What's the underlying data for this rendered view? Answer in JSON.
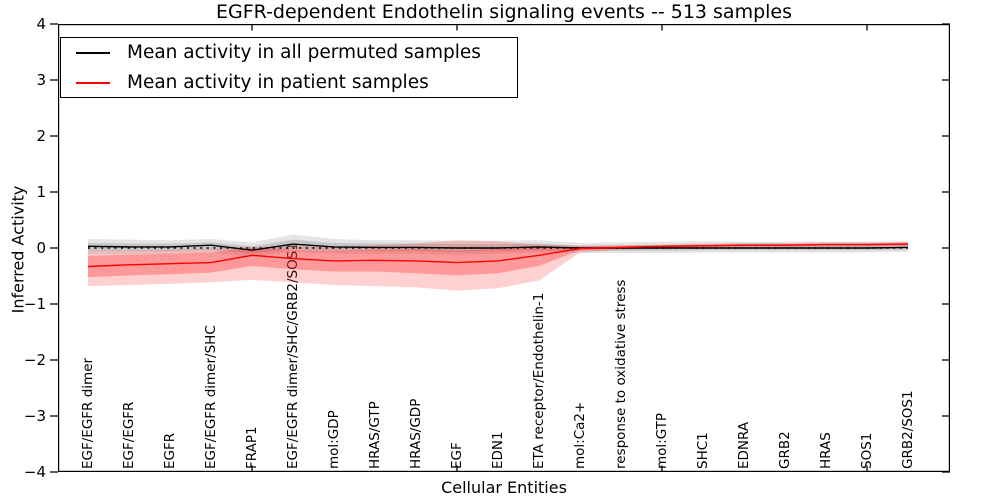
{
  "chart_data": {
    "type": "line",
    "title": "EGFR-dependent Endothelin signaling events -- 513 samples",
    "xlabel": "Cellular Entities",
    "ylabel": "Inferred Activity",
    "ylim": [
      -4,
      4
    ],
    "yticks": [
      4,
      3,
      2,
      1,
      0,
      -1,
      -2,
      -3,
      -4
    ],
    "ytick_labels": [
      "4",
      "3",
      "2",
      "1",
      "0",
      "−1",
      "−2",
      "−3",
      "−4"
    ],
    "x_major_ticks": [
      5,
      10,
      15,
      20
    ],
    "grid": false,
    "zero_reference_line": 0,
    "legend_position": "upper left",
    "categories": [
      "EGF/EGFR dimer",
      "EGF/EGFR",
      "EGFR",
      "EGF/EGFR dimer/SHC",
      "FRAP1",
      "EGF/EGFR dimer/SHC/GRB2/SOS1",
      "mol:GDP",
      "HRAS/GTP",
      "HRAS/GDP",
      "EGF",
      "EDN1",
      "ETA receptor/Endothelin-1",
      "mol:Ca2+",
      "response to oxidative stress",
      "mol:GTP",
      "SHC1",
      "EDNRA",
      "GRB2",
      "HRAS",
      "SOS1",
      "GRB2/SOS1"
    ],
    "series": [
      {
        "name": "Mean activity in all permuted samples",
        "color": "#000000",
        "band_outer_color": "rgba(130,130,130,0.22)",
        "band_inner_color": "rgba(130,130,130,0.30)",
        "mean": [
          0.03,
          0.02,
          0.02,
          0.05,
          -0.04,
          0.07,
          0.02,
          0.01,
          0.01,
          0.0,
          0.0,
          0.02,
          0.0,
          0.0,
          0.0,
          0.0,
          0.0,
          0.0,
          0.0,
          0.0,
          0.01
        ],
        "band_outer_high": [
          0.16,
          0.15,
          0.14,
          0.16,
          0.1,
          0.24,
          0.16,
          0.14,
          0.14,
          0.13,
          0.13,
          0.14,
          0.09,
          0.1,
          0.11,
          0.12,
          0.11,
          0.11,
          0.11,
          0.11,
          0.12
        ],
        "band_outer_low": [
          -0.11,
          -0.11,
          -0.1,
          -0.08,
          -0.16,
          -0.07,
          -0.1,
          -0.1,
          -0.1,
          -0.12,
          -0.1,
          -0.08,
          -0.09,
          -0.09,
          -0.09,
          -0.08,
          -0.08,
          -0.08,
          -0.08,
          -0.08,
          -0.07
        ],
        "band_inner_high": [
          0.09,
          0.08,
          0.08,
          0.1,
          0.03,
          0.15,
          0.09,
          0.08,
          0.08,
          0.07,
          0.07,
          0.08,
          0.04,
          0.05,
          0.05,
          0.06,
          0.06,
          0.06,
          0.06,
          0.06,
          0.07
        ],
        "band_inner_low": [
          -0.05,
          -0.05,
          -0.05,
          -0.03,
          -0.1,
          -0.02,
          -0.05,
          -0.05,
          -0.05,
          -0.07,
          -0.05,
          -0.04,
          -0.05,
          -0.05,
          -0.05,
          -0.04,
          -0.04,
          -0.04,
          -0.04,
          -0.04,
          -0.03
        ]
      },
      {
        "name": "Mean activity in patient samples",
        "color": "#ff0000",
        "band_outer_color": "rgba(255,40,40,0.22)",
        "band_inner_color": "rgba(255,40,40,0.33)",
        "mean": [
          -0.33,
          -0.3,
          -0.28,
          -0.26,
          -0.13,
          -0.19,
          -0.23,
          -0.22,
          -0.23,
          -0.26,
          -0.23,
          -0.13,
          -0.01,
          0.01,
          0.03,
          0.04,
          0.05,
          0.05,
          0.06,
          0.06,
          0.07
        ],
        "band_outer_high": [
          -0.04,
          -0.04,
          -0.03,
          -0.02,
          0.02,
          0.03,
          0.02,
          0.05,
          0.08,
          0.14,
          0.12,
          0.06,
          0.04,
          0.05,
          0.06,
          0.08,
          0.09,
          0.09,
          0.1,
          0.1,
          0.11
        ],
        "band_outer_low": [
          -0.68,
          -0.66,
          -0.64,
          -0.61,
          -0.57,
          -0.61,
          -0.66,
          -0.68,
          -0.7,
          -0.76,
          -0.72,
          -0.58,
          -0.08,
          -0.03,
          -0.01,
          0.0,
          0.01,
          0.01,
          0.02,
          0.02,
          0.03
        ],
        "band_inner_high": [
          -0.14,
          -0.12,
          -0.1,
          -0.08,
          0.0,
          -0.03,
          -0.05,
          -0.03,
          -0.02,
          -0.04,
          -0.02,
          0.01,
          0.02,
          0.03,
          0.05,
          0.06,
          0.07,
          0.07,
          0.08,
          0.08,
          0.09
        ],
        "band_inner_low": [
          -0.52,
          -0.49,
          -0.47,
          -0.44,
          -0.32,
          -0.38,
          -0.42,
          -0.42,
          -0.45,
          -0.49,
          -0.45,
          -0.32,
          -0.04,
          -0.01,
          0.01,
          0.02,
          0.03,
          0.03,
          0.04,
          0.04,
          0.05
        ]
      }
    ]
  }
}
